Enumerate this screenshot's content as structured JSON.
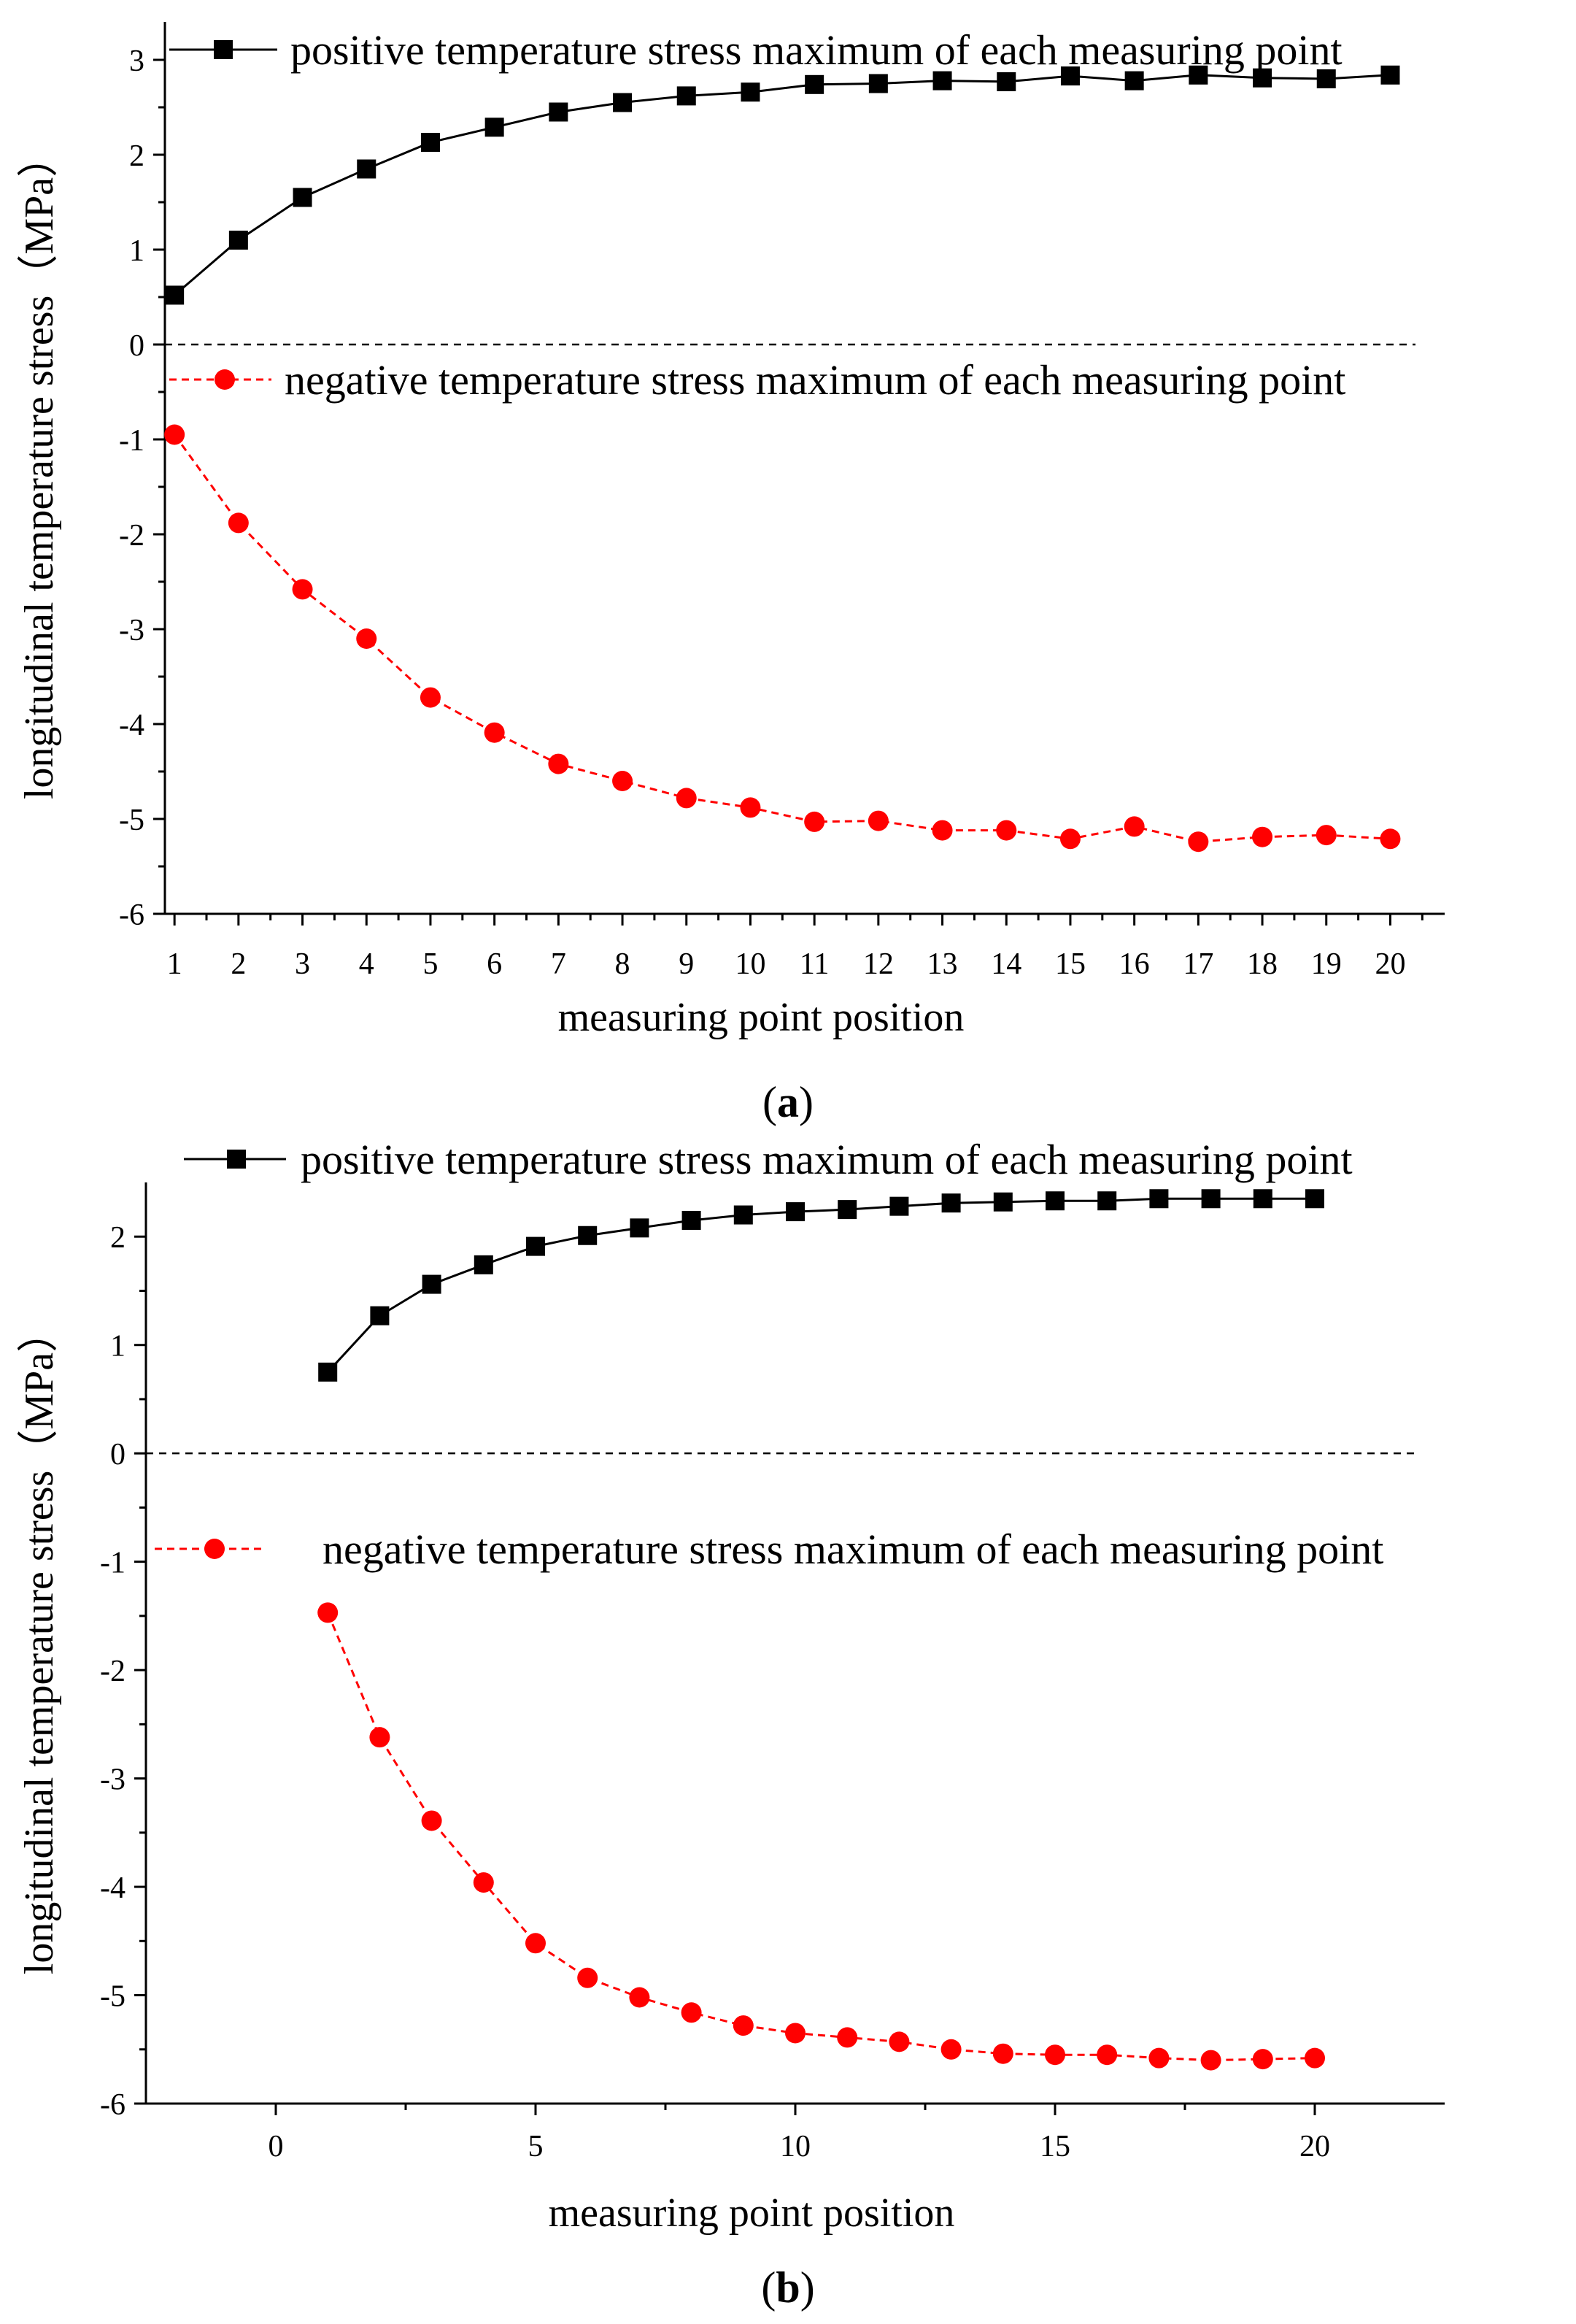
{
  "chart_data": [
    {
      "type": "line",
      "panel": "a",
      "panel_label": {
        "open": "(",
        "letter": "a",
        "close": ")"
      },
      "xlabel": "measuring point position",
      "ylabel": "longitudinal temperature stress（MPa）",
      "xlim": [
        0.85,
        20.85
      ],
      "ylim": [
        -6,
        3.4
      ],
      "xticks": [
        1,
        2,
        3,
        4,
        5,
        6,
        7,
        8,
        9,
        10,
        11,
        12,
        13,
        14,
        15,
        16,
        17,
        18,
        19,
        20
      ],
      "yticks": [
        -6,
        -5,
        -4,
        -3,
        -2,
        -1,
        0,
        1,
        2,
        3
      ],
      "x": [
        1,
        2,
        3,
        4,
        5,
        6,
        7,
        8,
        9,
        10,
        11,
        12,
        13,
        14,
        15,
        16,
        17,
        18,
        19,
        20
      ],
      "zero_line": true,
      "series": [
        {
          "name": "positive temperature stress maximum of each measuring point",
          "color": "#000000",
          "marker": "square",
          "line_style": "solid",
          "values": [
            0.52,
            1.1,
            1.55,
            1.85,
            2.13,
            2.29,
            2.45,
            2.55,
            2.62,
            2.66,
            2.74,
            2.75,
            2.78,
            2.77,
            2.83,
            2.78,
            2.84,
            2.81,
            2.8,
            2.84
          ]
        },
        {
          "name": "negative temperature stress maximum of each measuring point",
          "color": "#ff0000",
          "marker": "circle",
          "line_style": "dashed",
          "values": [
            -0.95,
            -1.88,
            -2.58,
            -3.1,
            -3.72,
            -4.09,
            -4.42,
            -4.6,
            -4.78,
            -4.88,
            -5.03,
            -5.02,
            -5.12,
            -5.12,
            -5.21,
            -5.08,
            -5.24,
            -5.19,
            -5.17,
            -5.21
          ]
        }
      ]
    },
    {
      "type": "line",
      "panel": "b",
      "panel_label": {
        "open": "(",
        "letter": "b",
        "close": ")"
      },
      "xlabel": "measuring point position",
      "ylabel": "longitudinal temperature stress（MPa）",
      "xlim": [
        -2.5,
        22.5
      ],
      "ylim": [
        -6,
        2.5
      ],
      "xticks": [
        0,
        5,
        10,
        15,
        20
      ],
      "yticks": [
        -6,
        -5,
        -4,
        -3,
        -2,
        -1,
        0,
        1,
        2
      ],
      "x": [
        1,
        2,
        3,
        4,
        5,
        6,
        7,
        8,
        9,
        10,
        11,
        12,
        13,
        14,
        15,
        16,
        17,
        18,
        19,
        20
      ],
      "zero_line": true,
      "series": [
        {
          "name": "positive temperature stress maximum of each measuring point",
          "color": "#000000",
          "marker": "square",
          "line_style": "solid",
          "values": [
            0.75,
            1.27,
            1.56,
            1.74,
            1.91,
            2.01,
            2.08,
            2.15,
            2.2,
            2.23,
            2.25,
            2.28,
            2.31,
            2.32,
            2.33,
            2.33,
            2.35,
            2.35,
            2.35,
            2.35
          ]
        },
        {
          "name": "negative temperature stress maximum of each measuring point",
          "color": "#ff0000",
          "marker": "circle",
          "line_style": "dashed",
          "values": [
            -1.47,
            -2.62,
            -3.39,
            -3.96,
            -4.52,
            -4.84,
            -5.02,
            -5.16,
            -5.28,
            -5.35,
            -5.39,
            -5.43,
            -5.5,
            -5.54,
            -5.55,
            -5.55,
            -5.58,
            -5.6,
            -5.59,
            -5.58
          ]
        }
      ]
    }
  ]
}
